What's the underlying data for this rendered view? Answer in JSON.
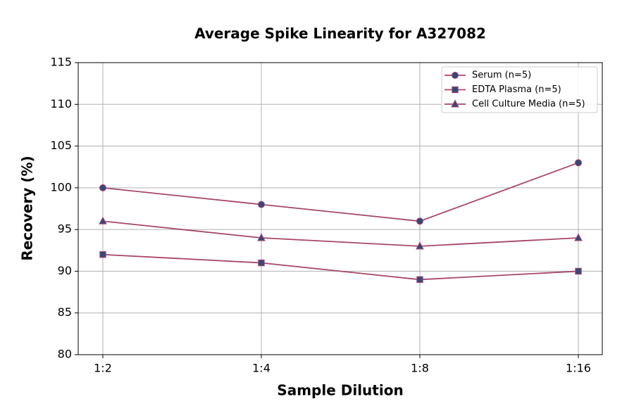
{
  "chart_data": {
    "type": "line",
    "title": "Average Spike Linearity for A327082",
    "x_label": "Sample Dilution",
    "y_label": "Recovery (%)",
    "categories": [
      "1:2",
      "1:4",
      "1:8",
      "1:16"
    ],
    "series": [
      {
        "name": "Serum (n=5)",
        "color": "#a8456b",
        "marker": "circle",
        "marker_color": "#34497a",
        "values": [
          100,
          98,
          96,
          103
        ]
      },
      {
        "name": "EDTA Plasma (n=5)",
        "color": "#a8456b",
        "marker": "square",
        "marker_color": "#34497a",
        "values": [
          92,
          91,
          89,
          90
        ]
      },
      {
        "name": "Cell Culture Media (n=5)",
        "color": "#a8456b",
        "marker": "triangle",
        "marker_color": "#34497a",
        "values": [
          96,
          94,
          93,
          94
        ]
      }
    ],
    "ylim": [
      80,
      115
    ],
    "yticks": [
      80,
      85,
      90,
      95,
      100,
      105,
      110,
      115
    ],
    "grid": true,
    "legend": "upper right"
  }
}
